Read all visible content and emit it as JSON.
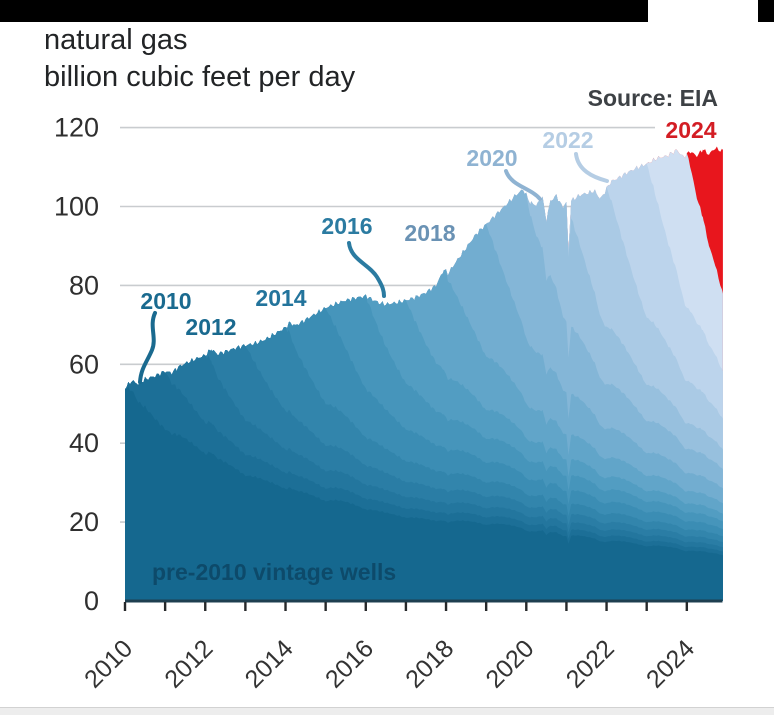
{
  "chart": {
    "title_line1": "natural gas",
    "title_line2": "billion cubic feet per day",
    "source_text": "Source: EIA",
    "inner_annotation": "pre-2010 vintage wells"
  },
  "chart_data": {
    "type": "area",
    "stacked": true,
    "title": "natural gas",
    "subtitle": "billion cubic feet per day",
    "source": "Source: EIA",
    "xlabel": "",
    "ylabel": "billion cubic feet per day",
    "xlim": [
      2010,
      2024.9
    ],
    "ylim": [
      0,
      120
    ],
    "grid": true,
    "yticks": [
      0,
      20,
      40,
      60,
      80,
      100,
      120
    ],
    "xticks": [
      2010,
      2011,
      2012,
      2013,
      2014,
      2015,
      2016,
      2017,
      2018,
      2019,
      2020,
      2021,
      2022,
      2023,
      2024
    ],
    "xtick_labels": [
      "2010",
      "2012",
      "2014",
      "2016",
      "2018",
      "2020",
      "2022",
      "2024"
    ],
    "annotation": "pre-2010 vintage wells",
    "envelope_units": "billion cubic feet per day",
    "envelope": [
      [
        2010.0,
        54
      ],
      [
        2010.17,
        55.8
      ],
      [
        2010.33,
        55.0
      ],
      [
        2010.5,
        56.2
      ],
      [
        2010.75,
        57.0
      ],
      [
        2011.0,
        58.2
      ],
      [
        2011.17,
        57.8
      ],
      [
        2011.33,
        59.3
      ],
      [
        2011.5,
        60.2
      ],
      [
        2011.75,
        61.3
      ],
      [
        2012.0,
        62.3
      ],
      [
        2012.15,
        63.8
      ],
      [
        2012.3,
        62.6
      ],
      [
        2012.5,
        63.2
      ],
      [
        2012.75,
        64.1
      ],
      [
        2013.0,
        64.8
      ],
      [
        2013.25,
        65.3
      ],
      [
        2013.5,
        66.3
      ],
      [
        2013.75,
        67.8
      ],
      [
        2014.0,
        69.3
      ],
      [
        2014.1,
        70.5
      ],
      [
        2014.25,
        69.8
      ],
      [
        2014.5,
        71.3
      ],
      [
        2014.75,
        72.8
      ],
      [
        2015.0,
        74.3
      ],
      [
        2015.25,
        75.3
      ],
      [
        2015.5,
        76.2
      ],
      [
        2015.75,
        76.8
      ],
      [
        2016.0,
        77.3
      ],
      [
        2016.17,
        76.4
      ],
      [
        2016.33,
        75.6
      ],
      [
        2016.5,
        75.2
      ],
      [
        2016.75,
        75.6
      ],
      [
        2017.0,
        76.2
      ],
      [
        2017.25,
        77.0
      ],
      [
        2017.5,
        78.2
      ],
      [
        2017.75,
        80.0
      ],
      [
        2017.95,
        84.0
      ],
      [
        2018.05,
        83.0
      ],
      [
        2018.25,
        86.0
      ],
      [
        2018.5,
        89.5
      ],
      [
        2018.75,
        93.0
      ],
      [
        2019.0,
        95.5
      ],
      [
        2019.25,
        98.0
      ],
      [
        2019.5,
        100.5
      ],
      [
        2019.75,
        103.0
      ],
      [
        2019.92,
        104.3
      ],
      [
        2020.1,
        101.0
      ],
      [
        2020.25,
        100.3
      ],
      [
        2020.4,
        102.3
      ],
      [
        2020.5,
        96.5
      ],
      [
        2020.6,
        101.3
      ],
      [
        2020.75,
        102.8
      ],
      [
        2020.9,
        99.8
      ],
      [
        2021.0,
        101.0
      ],
      [
        2021.05,
        89.0
      ],
      [
        2021.12,
        101.5
      ],
      [
        2021.35,
        103.0
      ],
      [
        2021.5,
        103.3
      ],
      [
        2021.7,
        104.0
      ],
      [
        2021.85,
        101.8
      ],
      [
        2022.0,
        104.5
      ],
      [
        2022.1,
        106.3
      ],
      [
        2022.25,
        107.0
      ],
      [
        2022.5,
        108.5
      ],
      [
        2022.75,
        109.8
      ],
      [
        2023.0,
        110.8
      ],
      [
        2023.25,
        112.2
      ],
      [
        2023.5,
        112.8
      ],
      [
        2023.75,
        114.3
      ],
      [
        2023.92,
        112.5
      ],
      [
        2024.08,
        114.0
      ],
      [
        2024.25,
        112.8
      ],
      [
        2024.4,
        114.5
      ],
      [
        2024.55,
        113.2
      ],
      [
        2024.7,
        114.8
      ],
      [
        2024.9,
        114.0
      ]
    ],
    "layers": [
      {
        "label": "pre-2010",
        "vintage": null,
        "peak": 54,
        "color": "#15688f"
      },
      {
        "label": "2010",
        "vintage": 2010,
        "peak": 13,
        "color": "#1c6f97"
      },
      {
        "label": "2011",
        "vintage": 2011,
        "peak": 14,
        "color": "#23769e"
      },
      {
        "label": "2012",
        "vintage": 2012,
        "peak": 15,
        "color": "#2a7da5"
      },
      {
        "label": "2013",
        "vintage": 2013,
        "peak": 16,
        "color": "#3285ac"
      },
      {
        "label": "2014",
        "vintage": 2014,
        "peak": 18,
        "color": "#3b8db4"
      },
      {
        "label": "2015",
        "vintage": 2015,
        "peak": 17,
        "color": "#4695bb"
      },
      {
        "label": "2016",
        "vintage": 2016,
        "peak": 15,
        "color": "#529dc2"
      },
      {
        "label": "2017",
        "vintage": 2017,
        "peak": 18,
        "color": "#61a5c9"
      },
      {
        "label": "2018",
        "vintage": 2018,
        "peak": 22,
        "color": "#72add0"
      },
      {
        "label": "2019",
        "vintage": 2019,
        "peak": 24,
        "color": "#84b6d7"
      },
      {
        "label": "2020",
        "vintage": 2020,
        "peak": 20,
        "color": "#97c0de"
      },
      {
        "label": "2021",
        "vintage": 2021,
        "peak": 24,
        "color": "#aacae5"
      },
      {
        "label": "2022",
        "vintage": 2022,
        "peak": 27,
        "color": "#bcd4ec"
      },
      {
        "label": "2023",
        "vintage": 2023,
        "peak": 28,
        "color": "#cfdff2"
      },
      {
        "label": "2024",
        "vintage": 2024,
        "peak": 30,
        "color": "#e8161d"
      }
    ],
    "callouts": [
      {
        "label": "2010",
        "color": "#1a6a8f"
      },
      {
        "label": "2012",
        "color": "#1a6a8f"
      },
      {
        "label": "2014",
        "color": "#23749c"
      },
      {
        "label": "2016",
        "color": "#2b7ba1"
      },
      {
        "label": "2018",
        "color": "#6a92b4"
      },
      {
        "label": "2020",
        "color": "#8fb3d2"
      },
      {
        "label": "2022",
        "color": "#b5cde4"
      },
      {
        "label": "2024",
        "color": "#d31d24"
      }
    ]
  }
}
